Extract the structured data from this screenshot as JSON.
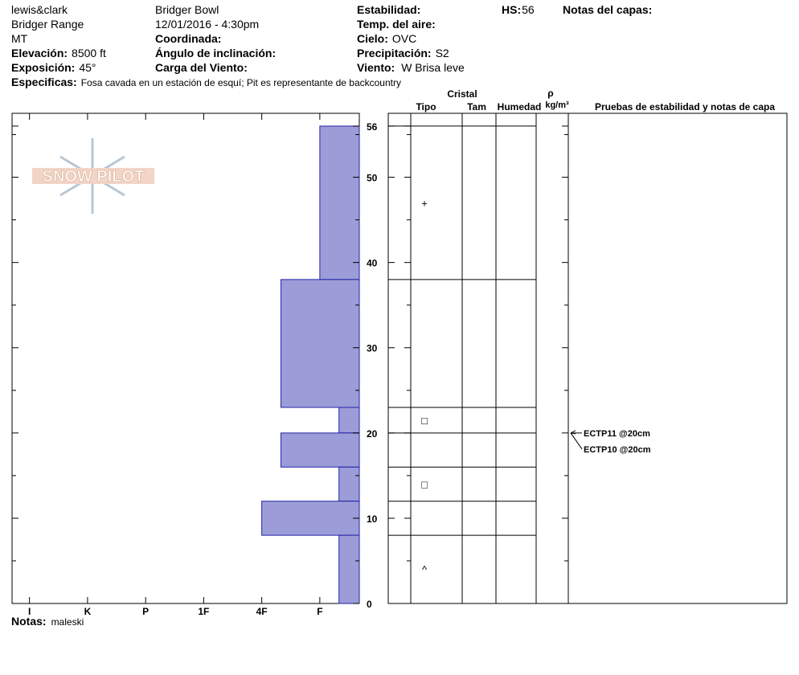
{
  "header": {
    "observer": "lewis&clark",
    "range": "Bridger Range",
    "state": "MT",
    "elevation": {
      "label": "Elevación:",
      "value": "8500 ft"
    },
    "aspect": {
      "label": "Exposición:",
      "value": "45°"
    },
    "specifics": {
      "label": "Especificas:",
      "value": "Fosa cavada en un estación de esquí; Pit es representante de backcountry"
    },
    "location": "Bridger Bowl",
    "datetime": "12/01/2016 - 4:30pm",
    "coordinates_label": "Coordinada:",
    "slope_label": "Ángulo de inclinación:",
    "wind_loading_label": "Carga del Viento:",
    "stability_label": "Estabilidad:",
    "air_temp_label": "Temp. del aire:",
    "sky": {
      "label": "Cielo:",
      "value": "OVC"
    },
    "precipitation": {
      "label": "Precipitación:",
      "value": "S2"
    },
    "wind": {
      "label": "Viento:",
      "value": "W Brisa leve"
    },
    "hs": {
      "label": "HS:",
      "value": 56
    },
    "layer_notes_label": "Notas del capas:"
  },
  "logo": "SNOW PILOT",
  "chart_data": {
    "type": "bar",
    "color": "#9c9cd8",
    "edge_color": "#2323a8",
    "xlim": [
      6.3,
      0.32
    ],
    "xticks": [
      {
        "value": 6,
        "label": "I"
      },
      {
        "value": 5,
        "label": "K"
      },
      {
        "value": 4,
        "label": "P"
      },
      {
        "value": 3,
        "label": "1F"
      },
      {
        "value": 2,
        "label": "4F"
      },
      {
        "value": 1,
        "label": "F"
      }
    ],
    "ylim": [
      0,
      57.5
    ],
    "yticks": [
      0,
      10,
      20,
      30,
      40,
      50,
      56
    ],
    "yticks_minor": [
      5,
      15,
      25,
      35,
      45,
      55
    ],
    "layers": [
      {
        "top": 56,
        "bottom": 38,
        "hardness": 1,
        "grain": "+"
      },
      {
        "top": 38,
        "bottom": 23,
        "hardness": 1.67
      },
      {
        "top": 23,
        "bottom": 20,
        "hardness": 0.67,
        "grain": "□"
      },
      {
        "top": 20,
        "bottom": 16,
        "hardness": 1.67
      },
      {
        "top": 16,
        "bottom": 12,
        "hardness": 0.67,
        "grain": "□"
      },
      {
        "top": 12,
        "bottom": 8,
        "hardness": 2
      },
      {
        "top": 8,
        "bottom": 0,
        "hardness": 0.67,
        "grain": "^"
      }
    ],
    "tests": [
      {
        "label": "ECTP11 @20cm",
        "depth": 20
      },
      {
        "label": "ECTP10 @20cm",
        "depth": 20
      }
    ]
  },
  "table": {
    "crystal": "Cristal",
    "type": "Tipo",
    "size": "Tam",
    "moisture": "Humedad",
    "density": "ρ",
    "density_unit": "kg/m³",
    "tests": "Pruebas de estabilidad y notas de capa"
  },
  "notes": {
    "label": "Notas:",
    "value": "maleski"
  }
}
